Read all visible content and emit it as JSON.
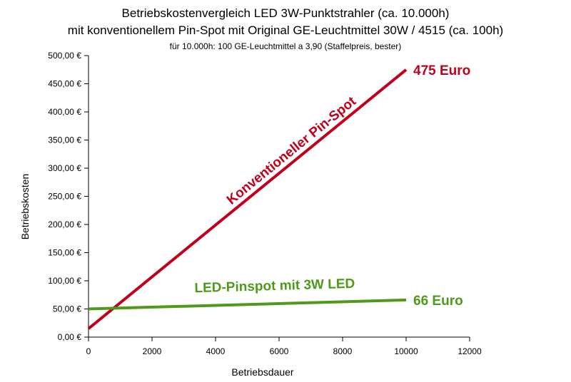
{
  "chart_data": {
    "type": "line",
    "title": "Betriebskostenvergleich LED 3W-Punktstrahler (ca. 10.000h)",
    "subtitle": "mit konventionellem Pin-Spot mit Original GE-Leuchtmittel 30W / 4515 (ca. 100h)",
    "note": "für 10.000h: 100 GE-Leuchtmittel a 3,90 (Staffelpreis, bester)",
    "xlabel": "Betriebsdauer",
    "ylabel": "Betriebskosten",
    "xlim": [
      0,
      12000
    ],
    "ylim": [
      0,
      500
    ],
    "x_ticks": [
      "0",
      "2000",
      "4000",
      "6000",
      "8000",
      "10000",
      "12000"
    ],
    "y_ticks": [
      "0,00 €",
      "50,00 €",
      "100,00 €",
      "150,00 €",
      "200,00 €",
      "250,00 €",
      "300,00 €",
      "350,00 €",
      "400,00 €",
      "450,00 €",
      "500,00 €"
    ],
    "grid": false,
    "series": [
      {
        "name": "Konventioneller Pin-Spot",
        "color": "#c0001b",
        "x": [
          0,
          10000
        ],
        "y": [
          15,
          475
        ],
        "end_label": "475 Euro"
      },
      {
        "name": "LED-Pinspot mit 3W LED",
        "color": "#4e9a1a",
        "x": [
          0,
          10000
        ],
        "y": [
          50,
          66
        ],
        "end_label": "66 Euro"
      }
    ]
  }
}
